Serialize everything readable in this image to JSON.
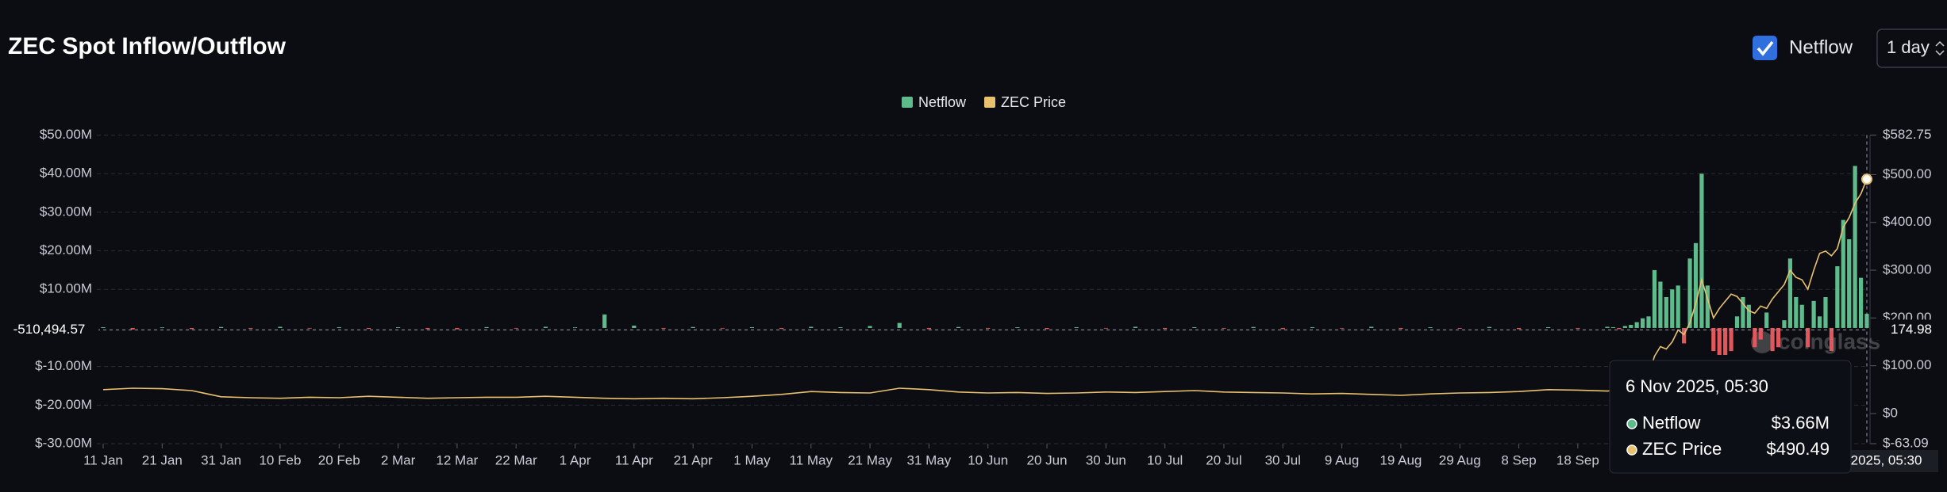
{
  "header": {
    "title": "ZEC Spot Inflow/Outflow",
    "toggle_label": "Netflow",
    "interval": "1 day"
  },
  "chart_data": {
    "type": "bar-line",
    "watermark": "coinglass",
    "x": [
      "2025-01-11",
      "2025-01-16",
      "2025-01-21",
      "2025-01-26",
      "2025-01-31",
      "2025-02-05",
      "2025-02-10",
      "2025-02-15",
      "2025-02-20",
      "2025-02-25",
      "2025-03-02",
      "2025-03-07",
      "2025-03-12",
      "2025-03-17",
      "2025-03-22",
      "2025-03-27",
      "2025-04-01",
      "2025-04-06",
      "2025-04-11",
      "2025-04-16",
      "2025-04-21",
      "2025-04-26",
      "2025-05-01",
      "2025-05-06",
      "2025-05-11",
      "2025-05-16",
      "2025-05-21",
      "2025-05-26",
      "2025-05-31",
      "2025-06-05",
      "2025-06-10",
      "2025-06-15",
      "2025-06-20",
      "2025-06-25",
      "2025-06-30",
      "2025-07-05",
      "2025-07-10",
      "2025-07-15",
      "2025-07-20",
      "2025-07-25",
      "2025-07-30",
      "2025-08-04",
      "2025-08-09",
      "2025-08-14",
      "2025-08-19",
      "2025-08-24",
      "2025-08-29",
      "2025-09-03",
      "2025-09-08",
      "2025-09-13",
      "2025-09-18",
      "2025-09-23",
      "2025-09-24",
      "2025-09-25",
      "2025-09-26",
      "2025-09-27",
      "2025-09-28",
      "2025-09-29",
      "2025-09-30",
      "2025-10-01",
      "2025-10-02",
      "2025-10-03",
      "2025-10-04",
      "2025-10-05",
      "2025-10-06",
      "2025-10-07",
      "2025-10-08",
      "2025-10-09",
      "2025-10-10",
      "2025-10-11",
      "2025-10-12",
      "2025-10-13",
      "2025-10-14",
      "2025-10-15",
      "2025-10-16",
      "2025-10-17",
      "2025-10-18",
      "2025-10-19",
      "2025-10-20",
      "2025-10-21",
      "2025-10-22",
      "2025-10-23",
      "2025-10-24",
      "2025-10-25",
      "2025-10-26",
      "2025-10-27",
      "2025-10-28",
      "2025-10-29",
      "2025-10-30",
      "2025-10-31",
      "2025-11-01",
      "2025-11-02",
      "2025-11-03",
      "2025-11-04",
      "2025-11-05",
      "2025-11-06"
    ],
    "series": [
      {
        "name": "Netflow",
        "color": "#5dbb8c",
        "negative_color": "#e2575b",
        "values": [
          200000,
          -400000,
          150000,
          -300000,
          250000,
          -200000,
          300000,
          -150000,
          200000,
          -250000,
          180000,
          -300000,
          -350000,
          220000,
          -180000,
          300000,
          150000,
          3500000,
          600000,
          -200000,
          250000,
          -150000,
          200000,
          -250000,
          300000,
          180000,
          500000,
          1300000,
          -300000,
          250000,
          -200000,
          180000,
          -300000,
          200000,
          -150000,
          300000,
          -250000,
          200000,
          -180000,
          250000,
          -300000,
          200000,
          -150000,
          300000,
          -250000,
          180000,
          -200000,
          250000,
          -300000,
          200000,
          -200000,
          300000,
          200000,
          -300000,
          500000,
          800000,
          1500000,
          2500000,
          3000000,
          15000000,
          12000000,
          8000000,
          10000000,
          11000000,
          -4000000,
          18000000,
          22000000,
          40000000,
          11000000,
          -6000000,
          -7000000,
          -7000000,
          -6000000,
          3000000,
          8000000,
          6000000,
          -5000000,
          -3000000,
          4000000,
          -6000000,
          -5000000,
          2000000,
          18000000,
          8000000,
          6000000,
          -5000000,
          7000000,
          3000000,
          8000000,
          -6000000,
          16000000,
          28000000,
          23000000,
          42000000,
          13000000,
          3660000
        ]
      },
      {
        "name": "ZEC Price",
        "color": "#e8c16e",
        "axis": "y2",
        "values": [
          50,
          53,
          52,
          48,
          35,
          33,
          32,
          34,
          33,
          36,
          34,
          32,
          33,
          34,
          34,
          36,
          34,
          32,
          31,
          32,
          31,
          33,
          36,
          40,
          46,
          44,
          43,
          53,
          50,
          45,
          43,
          44,
          42,
          43,
          45,
          44,
          46,
          48,
          45,
          44,
          43,
          41,
          42,
          40,
          38,
          41,
          43,
          44,
          46,
          50,
          49,
          47,
          48,
          47,
          50,
          52,
          55,
          65,
          80,
          120,
          140,
          135,
          150,
          175,
          165,
          190,
          230,
          280,
          240,
          200,
          220,
          235,
          250,
          245,
          230,
          215,
          210,
          225,
          220,
          240,
          255,
          270,
          300,
          285,
          280,
          260,
          300,
          335,
          340,
          330,
          345,
          390,
          410,
          440,
          460,
          490.49
        ]
      }
    ],
    "xlim": [
      "2025-01-11",
      "2025-11-06"
    ],
    "xticks": [
      {
        "value": "2025-01-11",
        "label": "11 Jan"
      },
      {
        "value": "2025-01-21",
        "label": "21 Jan"
      },
      {
        "value": "2025-01-31",
        "label": "31 Jan"
      },
      {
        "value": "2025-02-10",
        "label": "10 Feb"
      },
      {
        "value": "2025-02-20",
        "label": "20 Feb"
      },
      {
        "value": "2025-03-02",
        "label": "2 Mar"
      },
      {
        "value": "2025-03-12",
        "label": "12 Mar"
      },
      {
        "value": "2025-03-22",
        "label": "22 Mar"
      },
      {
        "value": "2025-04-01",
        "label": "1 Apr"
      },
      {
        "value": "2025-04-11",
        "label": "11 Apr"
      },
      {
        "value": "2025-04-21",
        "label": "21 Apr"
      },
      {
        "value": "2025-05-01",
        "label": "1 May"
      },
      {
        "value": "2025-05-11",
        "label": "11 May"
      },
      {
        "value": "2025-05-21",
        "label": "21 May"
      },
      {
        "value": "2025-05-31",
        "label": "31 May"
      },
      {
        "value": "2025-06-10",
        "label": "10 Jun"
      },
      {
        "value": "2025-06-20",
        "label": "20 Jun"
      },
      {
        "value": "2025-06-30",
        "label": "30 Jun"
      },
      {
        "value": "2025-07-10",
        "label": "10 Jul"
      },
      {
        "value": "2025-07-20",
        "label": "20 Jul"
      },
      {
        "value": "2025-07-30",
        "label": "30 Jul"
      },
      {
        "value": "2025-08-09",
        "label": "9 Aug"
      },
      {
        "value": "2025-08-19",
        "label": "19 Aug"
      },
      {
        "value": "2025-08-29",
        "label": "29 Aug"
      },
      {
        "value": "2025-09-08",
        "label": "8 Sep"
      },
      {
        "value": "2025-09-18",
        "label": "18 Sep"
      }
    ],
    "ylim": [
      -30000000,
      50000000
    ],
    "yticks": [
      {
        "value": 50000000,
        "label": "$50.00M"
      },
      {
        "value": 40000000,
        "label": "$40.00M"
      },
      {
        "value": 30000000,
        "label": "$30.00M"
      },
      {
        "value": 20000000,
        "label": "$20.00M"
      },
      {
        "value": 10000000,
        "label": "$10.00M"
      },
      {
        "value": -10000000,
        "label": "$-10.00M"
      },
      {
        "value": -20000000,
        "label": "$-20.00M"
      },
      {
        "value": -30000000,
        "label": "$-30.00M"
      }
    ],
    "y2lim": [
      -63.09,
      582.75
    ],
    "y2ticks": [
      {
        "value": 582.75,
        "label": "$582.75"
      },
      {
        "value": 500,
        "label": "$500.00"
      },
      {
        "value": 400,
        "label": "$400.00"
      },
      {
        "value": 300,
        "label": "$300.00"
      },
      {
        "value": 200,
        "label": "$200.00"
      },
      {
        "value": 100,
        "label": "$100.00"
      },
      {
        "value": 0,
        "label": "$0"
      },
      {
        "value": -63.09,
        "label": "$-63.09"
      }
    ],
    "grid": true,
    "legend": "top",
    "crosshair": {
      "y": {
        "value": -510494.57,
        "label": "-510,494.57"
      },
      "y2": 174.98
    },
    "tooltip": {
      "title": "6 Nov 2025, 05:30",
      "value_labels": [
        "$3.66M",
        "$490.49"
      ]
    }
  }
}
